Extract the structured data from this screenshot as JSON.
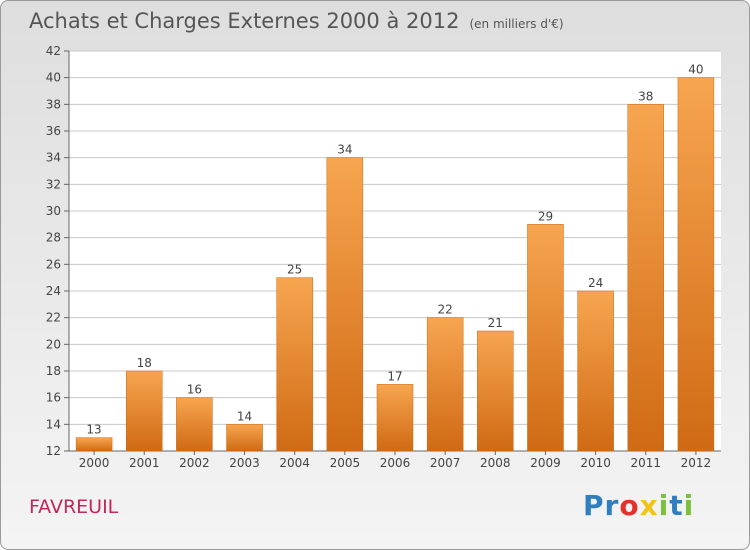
{
  "header": {
    "title": "Achats et Charges Externes 2000 à 2012",
    "unit": "(en milliers d'€)"
  },
  "footer": {
    "commune": "FAVREUIL",
    "logo_letters": [
      "P",
      "r",
      "o",
      "x",
      "i",
      "t",
      "i"
    ],
    "logo_colors": [
      "#2f7fc0",
      "#2f7fc0",
      "#e4322b",
      "#f0c419",
      "#7bbf3a",
      "#2f7fc0",
      "#7bbf3a"
    ]
  },
  "colors": {
    "bar_light": "#f7a550",
    "bar_dark": "#d06a14",
    "grid": "#c8c8c8",
    "title": "#555555",
    "commune": "#c0285a"
  },
  "chart_data": {
    "type": "bar",
    "title": "Achats et Charges Externes 2000 à 2012",
    "categories": [
      "2000",
      "2001",
      "2002",
      "2003",
      "2004",
      "2005",
      "2006",
      "2007",
      "2008",
      "2009",
      "2010",
      "2011",
      "2012"
    ],
    "values": [
      13,
      18,
      16,
      14,
      25,
      34,
      17,
      22,
      21,
      29,
      24,
      38,
      40
    ],
    "ylim": [
      12,
      42
    ],
    "yticks": [
      12,
      14,
      16,
      18,
      20,
      22,
      24,
      26,
      28,
      30,
      32,
      34,
      36,
      38,
      40,
      42
    ],
    "grid": true,
    "xlabel": "",
    "ylabel": ""
  }
}
